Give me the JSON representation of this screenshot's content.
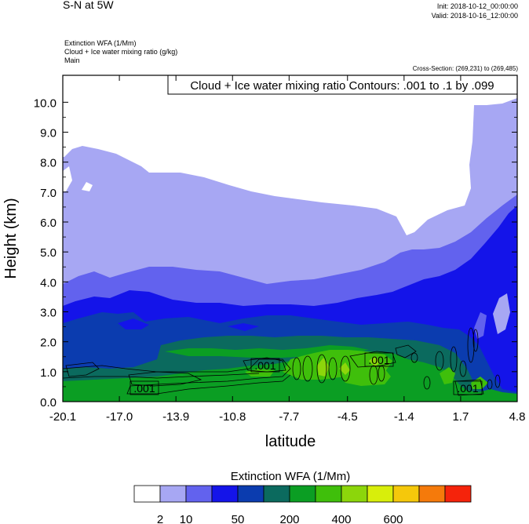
{
  "header": {
    "title": "S-N at 5W",
    "init": "Init: 2018-10-12_00:00:00",
    "valid": "Valid: 2018-10-16_12:00:00"
  },
  "fields": {
    "line1": "Extinction WFA   (1/Mm)",
    "line2": "Cloud + Ice water mixing ratio   (g/kg)",
    "line3": "Main"
  },
  "cross_section": "Cross-Section: (269,231) to (269,485)",
  "contour_label": "Cloud + Ice water mixing ratio Contours: .001 to .1 by .099",
  "contour_value_label": ".001",
  "colorbar": {
    "title": "Extinction WFA  (1/Mm)",
    "colors": [
      "#ffffff",
      "#a7a7f3",
      "#6262ee",
      "#1414e9",
      "#0b3caf",
      "#0b6a5e",
      "#0b9e23",
      "#3fbf0b",
      "#8cd60b",
      "#d8ee0b",
      "#f5c80b",
      "#f57a0b",
      "#f5230b"
    ],
    "tick_labels": [
      "2",
      "10",
      "50",
      "200",
      "400",
      "600"
    ]
  },
  "chart_data": {
    "type": "heatmap",
    "xlabel": "latitude",
    "ylabel": "Height (km)",
    "x_ticks": [
      "-20.1",
      "-17.0",
      "-13.9",
      "-10.8",
      "-7.7",
      "-4.5",
      "-1.4",
      "1.7",
      "4.8"
    ],
    "y_ticks": [
      "0.0",
      "1.0",
      "2.0",
      "3.0",
      "4.0",
      "5.0",
      "6.0",
      "7.0",
      "8.0",
      "9.0",
      "10.0"
    ],
    "xlim": [
      -20.1,
      4.8
    ],
    "ylim": [
      0,
      10.9
    ],
    "color_levels": [
      "2",
      "10",
      "50",
      "200",
      "400",
      "600"
    ],
    "contour_levels": [
      0.001,
      0.1
    ],
    "contour_labels": [
      ".001",
      ".001",
      ".001",
      ".001"
    ]
  }
}
